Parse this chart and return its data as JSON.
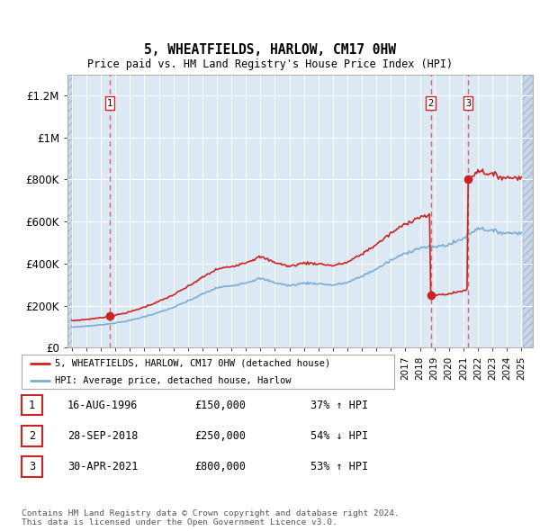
{
  "title": "5, WHEATFIELDS, HARLOW, CM17 0HW",
  "subtitle": "Price paid vs. HM Land Registry's House Price Index (HPI)",
  "ylim": [
    0,
    1300000
  ],
  "yticks": [
    0,
    200000,
    400000,
    600000,
    800000,
    1000000,
    1200000
  ],
  "ytick_labels": [
    "£0",
    "£200K",
    "£400K",
    "£600K",
    "£800K",
    "£1M",
    "£1.2M"
  ],
  "xlim_start": 1993.7,
  "xlim_end": 2025.8,
  "hatch_end": 1994.08,
  "hatch_start_right": 2025.08,
  "background_color": "#dce9f5",
  "grid_color": "#ffffff",
  "sale_dates": [
    1996.62,
    2018.75,
    2021.33
  ],
  "sale_prices": [
    150000,
    250000,
    800000
  ],
  "sale_labels": [
    "1",
    "2",
    "3"
  ],
  "transaction_table": [
    {
      "num": "1",
      "date": "16-AUG-1996",
      "price": "£150,000",
      "hpi": "37% ↑ HPI"
    },
    {
      "num": "2",
      "date": "28-SEP-2018",
      "price": "£250,000",
      "hpi": "54% ↓ HPI"
    },
    {
      "num": "3",
      "date": "30-APR-2021",
      "price": "£800,000",
      "hpi": "53% ↑ HPI"
    }
  ],
  "legend_line1": "5, WHEATFIELDS, HARLOW, CM17 0HW (detached house)",
  "legend_line2": "HPI: Average price, detached house, Harlow",
  "footer": "Contains HM Land Registry data © Crown copyright and database right 2024.\nThis data is licensed under the Open Government Licence v3.0.",
  "hpi_line_color": "#7aadd4",
  "price_line_color": "#cc2222",
  "dot_color": "#cc2222",
  "dashed_line_color": "#dd5555"
}
